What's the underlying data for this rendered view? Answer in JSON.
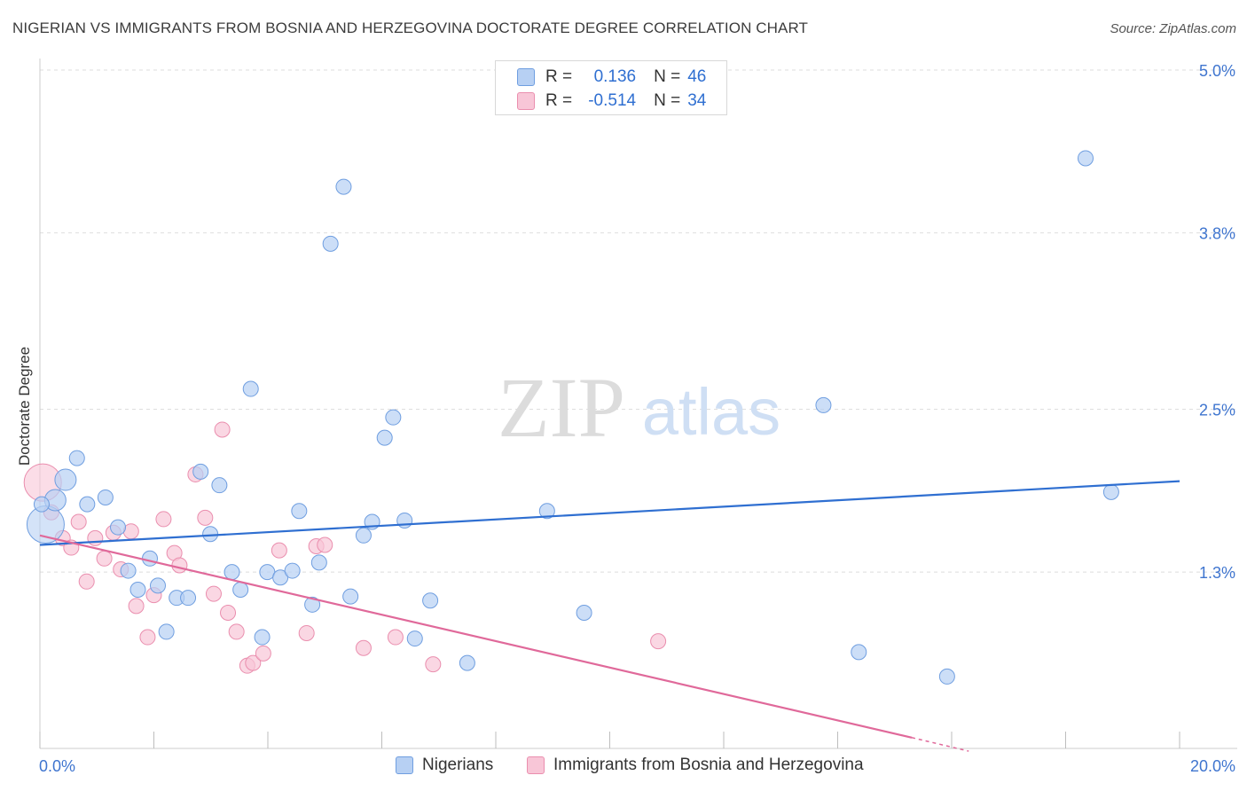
{
  "header": {
    "title": "NIGERIAN VS IMMIGRANTS FROM BOSNIA AND HERZEGOVINA DOCTORATE DEGREE CORRELATION CHART",
    "source": "Source: ZipAtlas.com"
  },
  "watermark": {
    "zip": "ZIP",
    "atlas": "atlas"
  },
  "legend": {
    "series": [
      {
        "r_label": "R =",
        "r_value": "0.136",
        "n_label": "N =",
        "n_value": "46"
      },
      {
        "r_label": "R =",
        "r_value": "-0.514",
        "n_label": "N =",
        "n_value": "34"
      }
    ]
  },
  "bottom_legend": {
    "nigerians": "Nigerians",
    "bosnia": "Immigrants from Bosnia and Herzegovina"
  },
  "colors": {
    "blue_fill": "#b7d0f3",
    "blue_stroke": "#6f9ee0",
    "blue_line": "#2f6fd1",
    "pink_fill": "#f8c6d7",
    "pink_stroke": "#ea8eae",
    "pink_line": "#e0699a",
    "tick_label": "#3f75cf",
    "grid": "#dedede"
  },
  "chart_data": {
    "type": "scatter",
    "title": "NIGERIAN VS IMMIGRANTS FROM BOSNIA AND HERZEGOVINA DOCTORATE DEGREE CORRELATION CHART",
    "xlabel": "",
    "ylabel": "Doctorate Degree",
    "xlim": [
      0,
      20
    ],
    "ylim": [
      0,
      5.0
    ],
    "x_tick_labels": [
      "0.0%",
      "20.0%"
    ],
    "y_ticks": [
      1.3,
      2.5,
      3.8,
      5.0
    ],
    "y_tick_labels": [
      "1.3%",
      "2.5%",
      "3.8%",
      "5.0%"
    ],
    "legend_position": "top-center",
    "series": [
      {
        "name": "Nigerians",
        "color": "#6f9ee0",
        "r": 0.136,
        "n": 46,
        "trend": {
          "x": [
            0,
            20
          ],
          "y": [
            1.5,
            1.97
          ]
        },
        "points": [
          {
            "x": 0.1,
            "y": 1.65,
            "s": 3
          },
          {
            "x": 0.27,
            "y": 1.83,
            "s": 2
          },
          {
            "x": 0.45,
            "y": 1.98,
            "s": 2
          },
          {
            "x": 0.65,
            "y": 2.14,
            "s": 1
          },
          {
            "x": 0.83,
            "y": 1.8,
            "s": 1
          },
          {
            "x": 1.15,
            "y": 1.85,
            "s": 1
          },
          {
            "x": 1.37,
            "y": 1.63,
            "s": 1
          },
          {
            "x": 1.55,
            "y": 1.31,
            "s": 1
          },
          {
            "x": 1.72,
            "y": 1.17,
            "s": 1
          },
          {
            "x": 1.93,
            "y": 1.4,
            "s": 1
          },
          {
            "x": 2.07,
            "y": 1.2,
            "s": 1
          },
          {
            "x": 2.22,
            "y": 0.86,
            "s": 1
          },
          {
            "x": 2.4,
            "y": 1.11,
            "s": 1
          },
          {
            "x": 2.6,
            "y": 1.11,
            "s": 1
          },
          {
            "x": 2.82,
            "y": 2.04,
            "s": 1
          },
          {
            "x": 2.99,
            "y": 1.58,
            "s": 1
          },
          {
            "x": 3.15,
            "y": 1.94,
            "s": 1
          },
          {
            "x": 3.37,
            "y": 1.3,
            "s": 1
          },
          {
            "x": 3.52,
            "y": 1.17,
            "s": 1
          },
          {
            "x": 3.7,
            "y": 2.65,
            "s": 1
          },
          {
            "x": 3.9,
            "y": 0.82,
            "s": 1
          },
          {
            "x": 3.99,
            "y": 1.3,
            "s": 1
          },
          {
            "x": 4.22,
            "y": 1.26,
            "s": 1
          },
          {
            "x": 4.43,
            "y": 1.31,
            "s": 1
          },
          {
            "x": 4.55,
            "y": 1.75,
            "s": 1
          },
          {
            "x": 4.78,
            "y": 1.06,
            "s": 1
          },
          {
            "x": 4.9,
            "y": 1.37,
            "s": 1
          },
          {
            "x": 5.1,
            "y": 3.72,
            "s": 1
          },
          {
            "x": 5.33,
            "y": 4.14,
            "s": 1
          },
          {
            "x": 5.45,
            "y": 1.12,
            "s": 1
          },
          {
            "x": 5.68,
            "y": 1.57,
            "s": 1
          },
          {
            "x": 5.83,
            "y": 1.67,
            "s": 1
          },
          {
            "x": 6.05,
            "y": 2.29,
            "s": 1
          },
          {
            "x": 6.2,
            "y": 2.44,
            "s": 1
          },
          {
            "x": 6.4,
            "y": 1.68,
            "s": 1
          },
          {
            "x": 6.58,
            "y": 0.81,
            "s": 1
          },
          {
            "x": 6.85,
            "y": 1.09,
            "s": 1
          },
          {
            "x": 7.5,
            "y": 0.63,
            "s": 1
          },
          {
            "x": 8.9,
            "y": 1.75,
            "s": 1
          },
          {
            "x": 9.55,
            "y": 1.0,
            "s": 1
          },
          {
            "x": 13.75,
            "y": 2.53,
            "s": 1
          },
          {
            "x": 14.37,
            "y": 0.71,
            "s": 1
          },
          {
            "x": 15.92,
            "y": 0.53,
            "s": 1
          },
          {
            "x": 18.35,
            "y": 4.35,
            "s": 1
          },
          {
            "x": 18.8,
            "y": 1.89,
            "s": 1
          },
          {
            "x": 0.03,
            "y": 1.8,
            "s": 1
          }
        ]
      },
      {
        "name": "Immigrants from Bosnia and Herzegovina",
        "color": "#ea8eae",
        "r": -0.514,
        "n": 34,
        "trend": {
          "x": [
            0,
            15.3
          ],
          "y": [
            1.57,
            0.08
          ]
        },
        "trend_dashed": {
          "x": [
            15.3,
            16.3
          ],
          "y": [
            0.08,
            -0.02
          ]
        },
        "points": [
          {
            "x": 0.05,
            "y": 1.96,
            "s": 3
          },
          {
            "x": 0.2,
            "y": 1.74,
            "s": 1
          },
          {
            "x": 0.4,
            "y": 1.55,
            "s": 1
          },
          {
            "x": 0.55,
            "y": 1.48,
            "s": 1
          },
          {
            "x": 0.68,
            "y": 1.67,
            "s": 1
          },
          {
            "x": 0.82,
            "y": 1.23,
            "s": 1
          },
          {
            "x": 0.97,
            "y": 1.55,
            "s": 1
          },
          {
            "x": 1.13,
            "y": 1.4,
            "s": 1
          },
          {
            "x": 1.29,
            "y": 1.59,
            "s": 1
          },
          {
            "x": 1.42,
            "y": 1.32,
            "s": 1
          },
          {
            "x": 1.6,
            "y": 1.6,
            "s": 1
          },
          {
            "x": 1.69,
            "y": 1.05,
            "s": 1
          },
          {
            "x": 1.89,
            "y": 0.82,
            "s": 1
          },
          {
            "x": 2.0,
            "y": 1.13,
            "s": 1
          },
          {
            "x": 2.17,
            "y": 1.69,
            "s": 1
          },
          {
            "x": 2.36,
            "y": 1.44,
            "s": 1
          },
          {
            "x": 2.45,
            "y": 1.35,
            "s": 1
          },
          {
            "x": 2.73,
            "y": 2.02,
            "s": 1
          },
          {
            "x": 2.9,
            "y": 1.7,
            "s": 1
          },
          {
            "x": 3.05,
            "y": 1.14,
            "s": 1
          },
          {
            "x": 3.2,
            "y": 2.35,
            "s": 1
          },
          {
            "x": 3.3,
            "y": 1.0,
            "s": 1
          },
          {
            "x": 3.45,
            "y": 0.86,
            "s": 1
          },
          {
            "x": 3.64,
            "y": 0.61,
            "s": 1
          },
          {
            "x": 3.74,
            "y": 0.63,
            "s": 1
          },
          {
            "x": 3.92,
            "y": 0.7,
            "s": 1
          },
          {
            "x": 4.2,
            "y": 1.46,
            "s": 1
          },
          {
            "x": 4.68,
            "y": 0.85,
            "s": 1
          },
          {
            "x": 4.85,
            "y": 1.49,
            "s": 1
          },
          {
            "x": 5.0,
            "y": 1.5,
            "s": 1
          },
          {
            "x": 5.68,
            "y": 0.74,
            "s": 1
          },
          {
            "x": 6.24,
            "y": 0.82,
            "s": 1
          },
          {
            "x": 6.9,
            "y": 0.62,
            "s": 1
          },
          {
            "x": 10.85,
            "y": 0.79,
            "s": 1
          }
        ]
      }
    ]
  }
}
